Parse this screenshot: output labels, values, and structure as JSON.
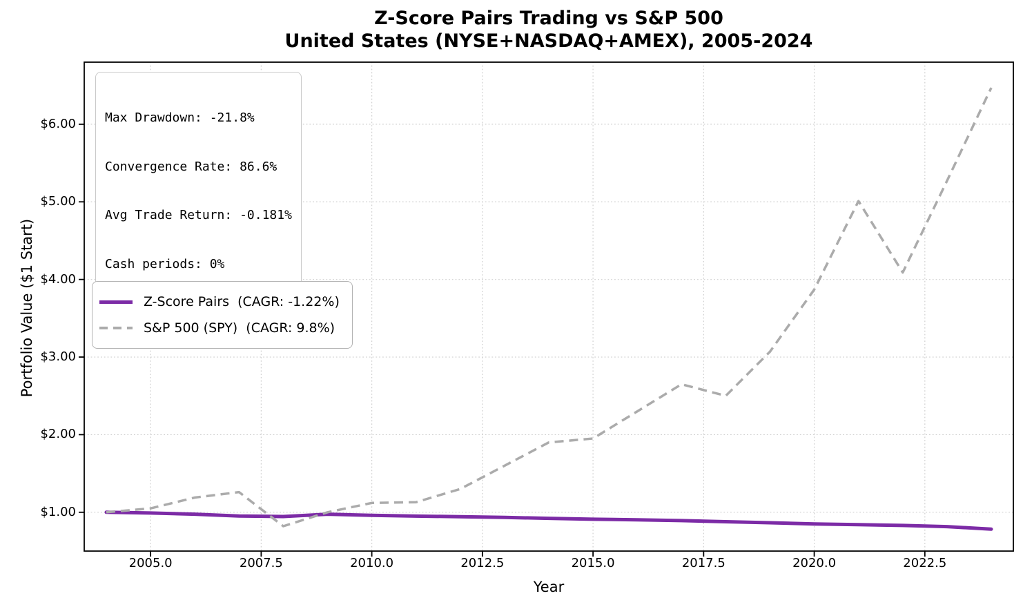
{
  "title": {
    "line1": "Z-Score Pairs Trading vs S&P 500",
    "line2": "United States (NYSE+NASDAQ+AMEX), 2005-2024"
  },
  "stats_box": {
    "lines": [
      "Max Drawdown: -21.8%",
      "Convergence Rate: 86.6%",
      "Avg Trade Return: -0.181%",
      "Cash periods: 0%"
    ]
  },
  "legend": {
    "items": [
      {
        "label": "Z-Score Pairs  (CAGR: -1.22%)",
        "color": "#7c2ba6",
        "style": "solid"
      },
      {
        "label": "S&P 500 (SPY)  (CAGR: 9.8%)",
        "color": "#ababab",
        "style": "dashed"
      }
    ]
  },
  "chart_data": {
    "type": "line",
    "title": "Z-Score Pairs Trading vs S&P 500",
    "subtitle": "United States (NYSE+NASDAQ+AMEX), 2005-2024",
    "xlabel": "Year",
    "ylabel": "Portfolio Value ($1 Start)",
    "xlim": [
      2003.5,
      2024.5
    ],
    "ylim": [
      0.5,
      6.8
    ],
    "grid": "dotted",
    "legend_position": "center-left",
    "x_ticks": {
      "values": [
        2005.0,
        2007.5,
        2010.0,
        2012.5,
        2015.0,
        2017.5,
        2020.0,
        2022.5
      ],
      "labels": [
        "2005.0",
        "2007.5",
        "2010.0",
        "2012.5",
        "2015.0",
        "2017.5",
        "2020.0",
        "2022.5"
      ]
    },
    "y_ticks": {
      "values": [
        1,
        2,
        3,
        4,
        5,
        6
      ],
      "labels": [
        "$1.00",
        "$2.00",
        "$3.00",
        "$4.00",
        "$5.00",
        "$6.00"
      ]
    },
    "x": [
      2004,
      2005,
      2006,
      2007,
      2008,
      2009,
      2010,
      2011,
      2012,
      2013,
      2014,
      2015,
      2016,
      2017,
      2018,
      2019,
      2020,
      2021,
      2022,
      2023,
      2024
    ],
    "series": [
      {
        "name": "Z-Score Pairs",
        "cagr": "-1.22%",
        "color": "#7c2ba6",
        "style": "solid",
        "line_width": 5,
        "values": [
          1.0,
          0.99,
          0.975,
          0.952,
          0.945,
          0.975,
          0.96,
          0.95,
          0.943,
          0.933,
          0.922,
          0.91,
          0.903,
          0.892,
          0.878,
          0.865,
          0.85,
          0.84,
          0.83,
          0.815,
          0.782
        ]
      },
      {
        "name": "S&P 500 (SPY)",
        "cagr": "9.8%",
        "color": "#ababab",
        "style": "dashed",
        "line_width": 3.5,
        "values": [
          1.0,
          1.05,
          1.19,
          1.26,
          0.82,
          1.0,
          1.12,
          1.13,
          1.3,
          1.6,
          1.9,
          1.95,
          2.3,
          2.65,
          2.5,
          3.07,
          3.87,
          5.01,
          4.09,
          5.27,
          6.47
        ]
      }
    ]
  }
}
